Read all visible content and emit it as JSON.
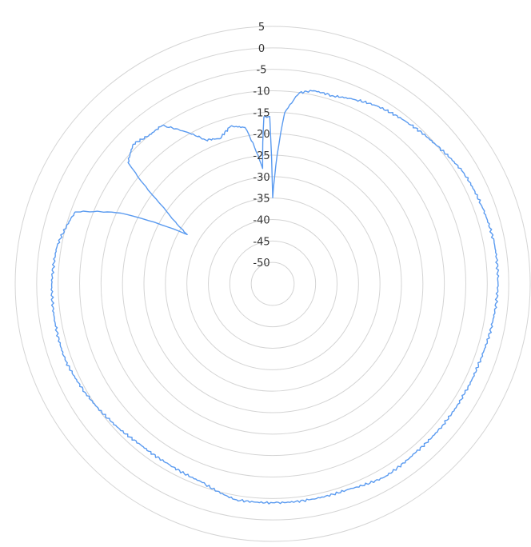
{
  "chart_data": {
    "type": "polar-line",
    "radial_ticks": [
      "5",
      "0",
      "-5",
      "-10",
      "-15",
      "-20",
      "-25",
      "-30",
      "-35",
      "-40",
      "-45",
      "-50"
    ],
    "r_range": [
      -55,
      5
    ],
    "grid": true,
    "series": [
      {
        "color": "#5b9bf0",
        "theta_deg": [
          0,
          4,
          8,
          12,
          18,
          24,
          30,
          40,
          50,
          60,
          70,
          80,
          90,
          100,
          110,
          120,
          130,
          140,
          150,
          160,
          170,
          180,
          190,
          200,
          210,
          220,
          230,
          240,
          250,
          260,
          270,
          280,
          290,
          295,
          300,
          305,
          310,
          315,
          320,
          325,
          330,
          335,
          340,
          345,
          350,
          355,
          357,
          359,
          360
        ],
        "r_db": [
          -35,
          -15,
          -10,
          -9,
          -9,
          -8,
          -7,
          -6,
          -5,
          -3.5,
          -3,
          -2.5,
          -2.5,
          -3,
          -3.5,
          -3.5,
          -3.5,
          -3.5,
          -3,
          -4,
          -4,
          -4,
          -4,
          -6,
          -6.5,
          -6.5,
          -5.5,
          -4.5,
          -3.5,
          -3.5,
          -3.5,
          -4,
          -6,
          -16,
          -32,
          -24,
          -11,
          -9,
          -10,
          -10,
          -14,
          -18,
          -19,
          -17,
          -18,
          -28,
          -16,
          -16,
          -35
        ]
      }
    ]
  }
}
